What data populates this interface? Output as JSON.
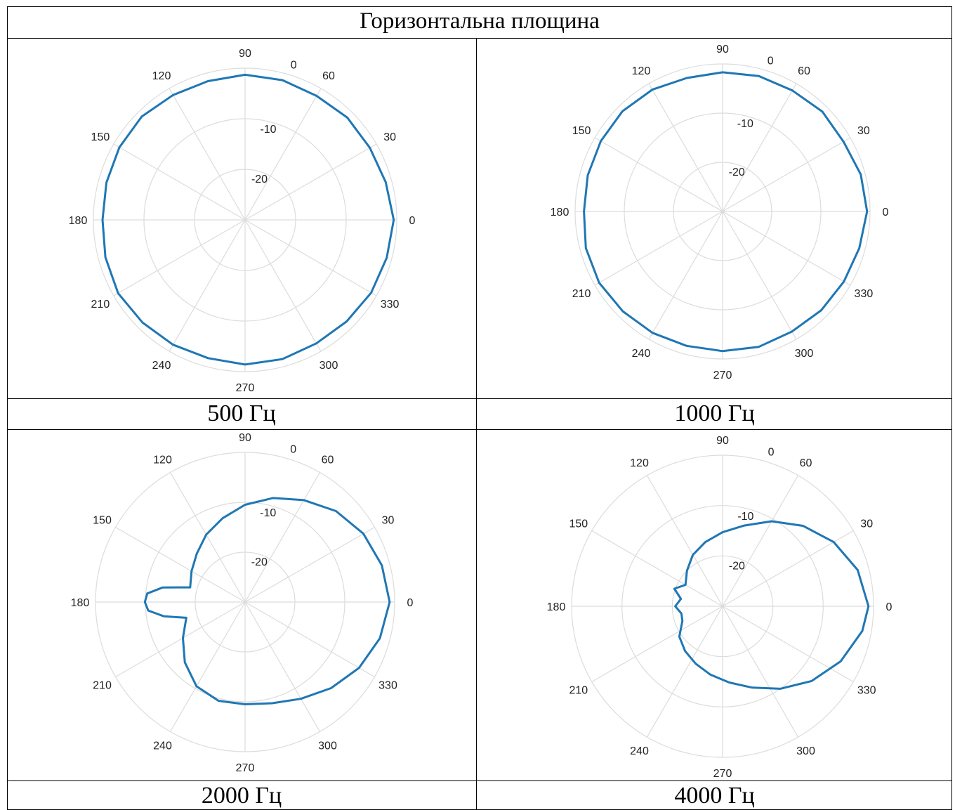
{
  "table": {
    "title": "Горизонтальна площина",
    "captions": [
      "500 Гц",
      "1000 Гц",
      "2000 Гц",
      "4000 Гц"
    ]
  },
  "chart_data": [
    {
      "type": "polar-line",
      "caption": "500 Гц",
      "theta_ticks": [
        0,
        30,
        60,
        90,
        120,
        150,
        180,
        210,
        240,
        270,
        300,
        330
      ],
      "r_ticks": [
        0,
        -10,
        -20
      ],
      "r_range": [
        -30,
        0
      ],
      "color": "#1f77b4",
      "theta": [
        0,
        15,
        30,
        45,
        60,
        75,
        90,
        105,
        120,
        135,
        150,
        165,
        180,
        195,
        210,
        225,
        240,
        255,
        270,
        285,
        300,
        315,
        330,
        345
      ],
      "r": [
        -0.6,
        -1.2,
        -1.5,
        -1.4,
        -1.7,
        -1.4,
        -1.3,
        -1.6,
        -1.5,
        -1.1,
        -1.3,
        -1.6,
        -1.8,
        -1.4,
        -1.0,
        -1.3,
        -1.5,
        -1.7,
        -1.4,
        -1.5,
        -1.8,
        -1.6,
        -1.2,
        -1.0
      ]
    },
    {
      "type": "polar-line",
      "caption": "1000 Гц",
      "theta_ticks": [
        0,
        30,
        60,
        90,
        120,
        150,
        180,
        210,
        240,
        270,
        300,
        330
      ],
      "r_ticks": [
        0,
        -10,
        -20
      ],
      "r_range": [
        -30,
        0
      ],
      "color": "#1f77b4",
      "theta": [
        0,
        15,
        30,
        45,
        60,
        75,
        90,
        105,
        120,
        135,
        150,
        165,
        180,
        195,
        210,
        225,
        240,
        255,
        270,
        285,
        300,
        315,
        330,
        345
      ],
      "r": [
        -0.6,
        -0.9,
        -1.6,
        -1.3,
        -1.6,
        -1.5,
        -1.7,
        -1.9,
        -1.4,
        -1.2,
        -1.4,
        -1.6,
        -1.8,
        -1.2,
        -1.0,
        -1.3,
        -1.5,
        -1.7,
        -1.6,
        -1.5,
        -1.8,
        -1.6,
        -1.5,
        -1.2
      ]
    },
    {
      "type": "polar-line",
      "caption": "2000 Гц",
      "theta_ticks": [
        0,
        30,
        60,
        90,
        120,
        150,
        180,
        210,
        240,
        270,
        300,
        330
      ],
      "r_ticks": [
        0,
        -10,
        -20
      ],
      "r_range": [
        -30,
        0
      ],
      "color": "#1f77b4",
      "theta": [
        0,
        15,
        30,
        45,
        60,
        75,
        90,
        105,
        120,
        135,
        150,
        165,
        170,
        175,
        180,
        185,
        190,
        195,
        210,
        225,
        240,
        255,
        270,
        285,
        300,
        315,
        330,
        345
      ],
      "r": [
        -1.0,
        -1.6,
        -2.6,
        -4.2,
        -6.4,
        -8.4,
        -10.5,
        -12.6,
        -14.4,
        -16.3,
        -17.6,
        -18.6,
        -13.2,
        -10.3,
        -9.9,
        -10.5,
        -13.5,
        -17.8,
        -15.6,
        -12.9,
        -10.5,
        -9.5,
        -9.5,
        -9.0,
        -7.6,
        -5.6,
        -3.6,
        -2.0
      ]
    },
    {
      "type": "polar-line",
      "caption": "4000 Гц",
      "theta_ticks": [
        0,
        30,
        60,
        90,
        120,
        150,
        180,
        210,
        240,
        270,
        300,
        330
      ],
      "r_ticks": [
        0,
        -10,
        -20
      ],
      "r_range": [
        -30,
        0
      ],
      "color": "#1f77b4",
      "theta": [
        0,
        15,
        30,
        45,
        60,
        75,
        90,
        105,
        120,
        135,
        150,
        160,
        170,
        180,
        190,
        200,
        215,
        230,
        245,
        260,
        275,
        290,
        305,
        320,
        335,
        350
      ],
      "r": [
        -1.0,
        -2.2,
        -4.5,
        -7.4,
        -10.5,
        -13.4,
        -15.3,
        -16.8,
        -18.2,
        -20.0,
        -21.5,
        -19.8,
        -21.6,
        -20.6,
        -21.7,
        -21.5,
        -19.5,
        -18.4,
        -17.4,
        -16.2,
        -14.8,
        -12.8,
        -10.0,
        -6.9,
        -4.1,
        -1.8
      ]
    }
  ]
}
